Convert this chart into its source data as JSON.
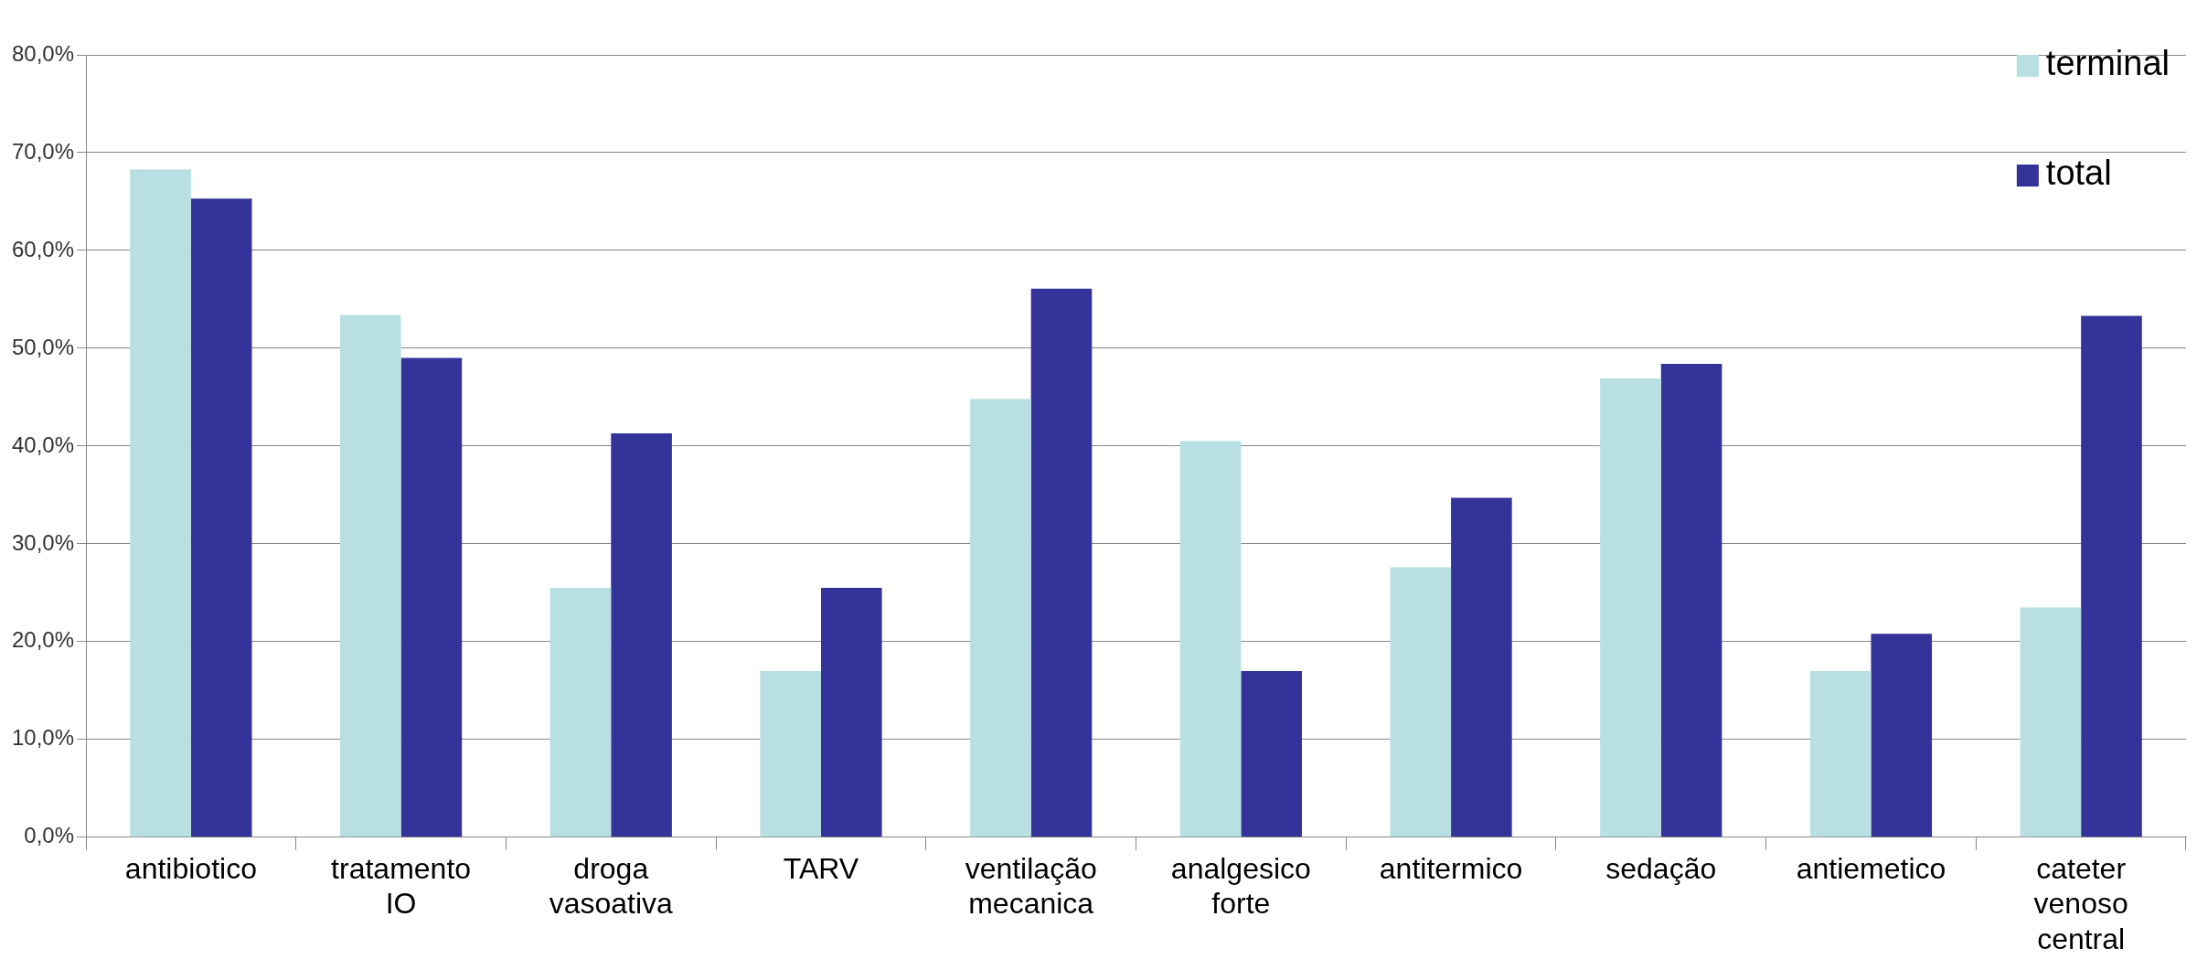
{
  "chart_data": {
    "type": "bar",
    "categories": [
      "antibiotico",
      "tratamento IO",
      "droga vasoativa",
      "TARV",
      "ventilação mecanica",
      "analgesico forte",
      "antitermico",
      "sedação",
      "antiemetico",
      "cateter venoso central"
    ],
    "series": [
      {
        "name": "terminal",
        "color": "#b8e0e3",
        "values": [
          68.3,
          53.4,
          25.5,
          17.0,
          44.8,
          40.5,
          27.6,
          46.9,
          17.0,
          23.5
        ]
      },
      {
        "name": "total",
        "color": "#333399",
        "values": [
          65.3,
          49.0,
          41.3,
          25.5,
          56.1,
          17.0,
          34.7,
          48.4,
          20.8,
          53.3
        ]
      }
    ],
    "ylim": [
      0,
      80
    ],
    "yticks": [
      {
        "value": 0,
        "label": "0,0%"
      },
      {
        "value": 10,
        "label": "10,0%"
      },
      {
        "value": 20,
        "label": "20,0%"
      },
      {
        "value": 30,
        "label": "30,0%"
      },
      {
        "value": 40,
        "label": "40,0%"
      },
      {
        "value": 50,
        "label": "50,0%"
      },
      {
        "value": 60,
        "label": "60,0%"
      },
      {
        "value": 70,
        "label": "70,0%"
      },
      {
        "value": 80,
        "label": "80,0%"
      }
    ],
    "grid": "y",
    "legend": "top right"
  }
}
